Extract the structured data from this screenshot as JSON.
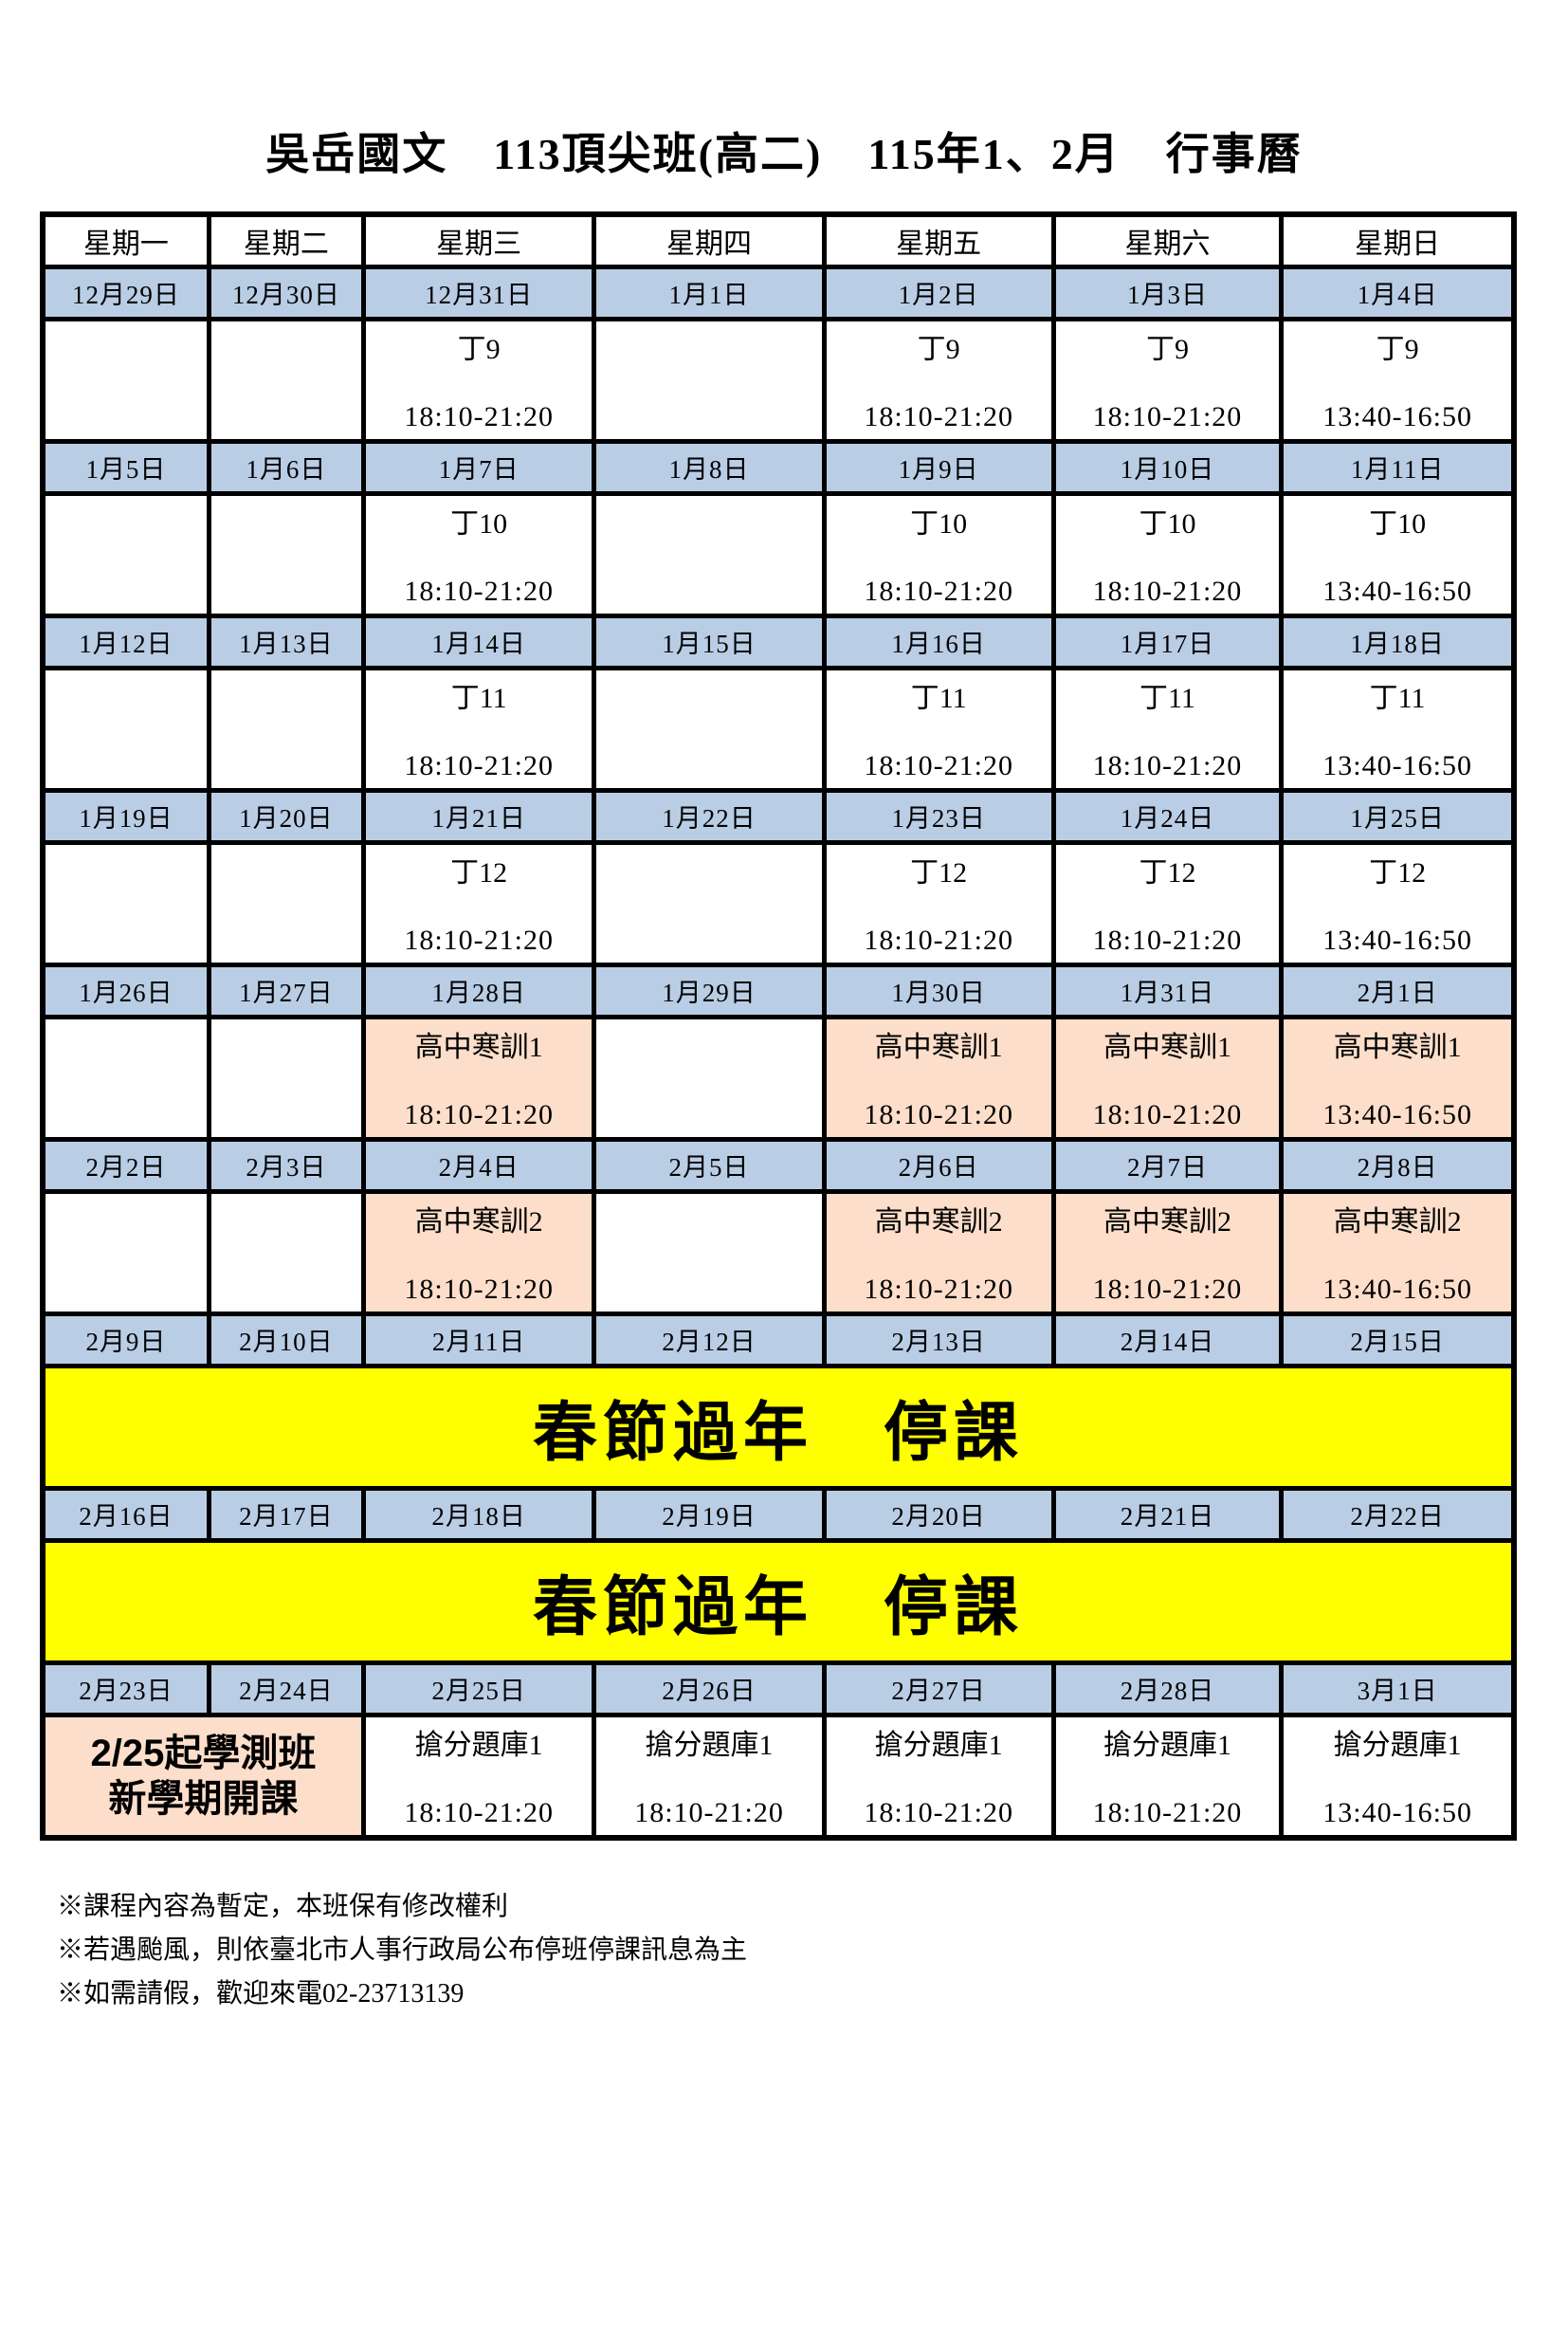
{
  "title": "吳岳國文　113頂尖班(高二)　115年1、2月　行事曆",
  "weekday_headers": [
    "星期一",
    "星期二",
    "星期三",
    "星期四",
    "星期五",
    "星期六",
    "星期日"
  ],
  "colors": {
    "date_row_blue": "#b9cde5",
    "highlight_peach": "#fcdeca",
    "holiday_yellow": "#ffff00",
    "border_black": "#000000"
  },
  "weeks": [
    {
      "dates": [
        "12月29日",
        "12月30日",
        "12月31日",
        "1月1日",
        "1月2日",
        "1月3日",
        "1月4日"
      ],
      "cells": [
        null,
        null,
        {
          "lesson": "丁9",
          "time": "18:10-21:20"
        },
        null,
        {
          "lesson": "丁9",
          "time": "18:10-21:20"
        },
        {
          "lesson": "丁9",
          "time": "18:10-21:20"
        },
        {
          "lesson": "丁9",
          "time": "13:40-16:50"
        }
      ]
    },
    {
      "dates": [
        "1月5日",
        "1月6日",
        "1月7日",
        "1月8日",
        "1月9日",
        "1月10日",
        "1月11日"
      ],
      "cells": [
        null,
        null,
        {
          "lesson": "丁10",
          "time": "18:10-21:20"
        },
        null,
        {
          "lesson": "丁10",
          "time": "18:10-21:20"
        },
        {
          "lesson": "丁10",
          "time": "18:10-21:20"
        },
        {
          "lesson": "丁10",
          "time": "13:40-16:50"
        }
      ]
    },
    {
      "dates": [
        "1月12日",
        "1月13日",
        "1月14日",
        "1月15日",
        "1月16日",
        "1月17日",
        "1月18日"
      ],
      "cells": [
        null,
        null,
        {
          "lesson": "丁11",
          "time": "18:10-21:20"
        },
        null,
        {
          "lesson": "丁11",
          "time": "18:10-21:20"
        },
        {
          "lesson": "丁11",
          "time": "18:10-21:20"
        },
        {
          "lesson": "丁11",
          "time": "13:40-16:50"
        }
      ]
    },
    {
      "dates": [
        "1月19日",
        "1月20日",
        "1月21日",
        "1月22日",
        "1月23日",
        "1月24日",
        "1月25日"
      ],
      "cells": [
        null,
        null,
        {
          "lesson": "丁12",
          "time": "18:10-21:20"
        },
        null,
        {
          "lesson": "丁12",
          "time": "18:10-21:20"
        },
        {
          "lesson": "丁12",
          "time": "18:10-21:20"
        },
        {
          "lesson": "丁12",
          "time": "13:40-16:50"
        }
      ]
    },
    {
      "dates": [
        "1月26日",
        "1月27日",
        "1月28日",
        "1月29日",
        "1月30日",
        "1月31日",
        "2月1日"
      ],
      "cells": [
        null,
        null,
        {
          "lesson": "高中寒訓1",
          "time": "18:10-21:20",
          "highlight": true
        },
        null,
        {
          "lesson": "高中寒訓1",
          "time": "18:10-21:20",
          "highlight": true
        },
        {
          "lesson": "高中寒訓1",
          "time": "18:10-21:20",
          "highlight": true
        },
        {
          "lesson": "高中寒訓1",
          "time": "13:40-16:50",
          "highlight": true
        }
      ]
    },
    {
      "dates": [
        "2月2日",
        "2月3日",
        "2月4日",
        "2月5日",
        "2月6日",
        "2月7日",
        "2月8日"
      ],
      "cells": [
        null,
        null,
        {
          "lesson": "高中寒訓2",
          "time": "18:10-21:20",
          "highlight": true
        },
        null,
        {
          "lesson": "高中寒訓2",
          "time": "18:10-21:20",
          "highlight": true
        },
        {
          "lesson": "高中寒訓2",
          "time": "18:10-21:20",
          "highlight": true
        },
        {
          "lesson": "高中寒訓2",
          "time": "13:40-16:50",
          "highlight": true
        }
      ]
    },
    {
      "dates": [
        "2月9日",
        "2月10日",
        "2月11日",
        "2月12日",
        "2月13日",
        "2月14日",
        "2月15日"
      ],
      "banner": "春節過年　停課"
    },
    {
      "dates": [
        "2月16日",
        "2月17日",
        "2月18日",
        "2月19日",
        "2月20日",
        "2月21日",
        "2月22日"
      ],
      "banner": "春節過年　停課"
    },
    {
      "dates": [
        "2月23日",
        "2月24日",
        "2月25日",
        "2月26日",
        "2月27日",
        "2月28日",
        "3月1日"
      ],
      "merged_note": [
        "2/25起學測班",
        "新學期開課"
      ],
      "cells": [
        null,
        null,
        {
          "lesson": "搶分題庫1",
          "time": "18:10-21:20"
        },
        {
          "lesson": "搶分題庫1",
          "time": "18:10-21:20"
        },
        {
          "lesson": "搶分題庫1",
          "time": "18:10-21:20"
        },
        {
          "lesson": "搶分題庫1",
          "time": "18:10-21:20"
        },
        {
          "lesson": "搶分題庫1",
          "time": "13:40-16:50"
        }
      ]
    }
  ],
  "footnotes": [
    "※課程內容為暫定，本班保有修改權利",
    "※若遇颱風，則依臺北市人事行政局公布停班停課訊息為主",
    "※如需請假，歡迎來電02-23713139"
  ]
}
